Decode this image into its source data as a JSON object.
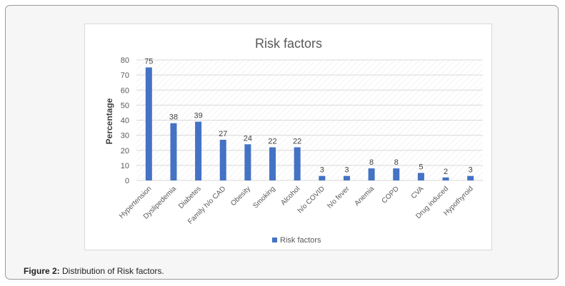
{
  "figure": {
    "caption_label": "Figure 2:",
    "caption_text": "Distribution of Risk factors."
  },
  "chart_data": {
    "type": "bar",
    "title": "Risk factors",
    "xlabel": "",
    "ylabel": "Percentage",
    "categories": [
      "Hypertension",
      "Dyslipedemia",
      "Diabetes",
      "Family h/o CAD",
      "Obesity",
      "Smoking",
      "Alcohol",
      "h/o COVID",
      "h/o fever",
      "Anemia",
      "COPD",
      "CVA",
      "Drug induced",
      "Hypothyroid"
    ],
    "series": [
      {
        "name": "Risk factors",
        "values": [
          75,
          38,
          39,
          27,
          24,
          22,
          22,
          3,
          3,
          8,
          8,
          5,
          2,
          3
        ],
        "color": "#4472c4"
      }
    ],
    "data_labels": [
      "75",
      "38",
      "39",
      "27",
      "24",
      "22",
      "22",
      "3",
      "3",
      "8",
      "8",
      "5",
      "2",
      "3"
    ],
    "yticks": [
      "0",
      "10",
      "20",
      "30",
      "40",
      "50",
      "60",
      "70",
      "80"
    ],
    "ylim": [
      0,
      80
    ],
    "grid": true,
    "legend_position": "bottom",
    "colors": {
      "bar": "#4472c4",
      "grid": "#d9d9d9",
      "text": "#595959"
    }
  }
}
